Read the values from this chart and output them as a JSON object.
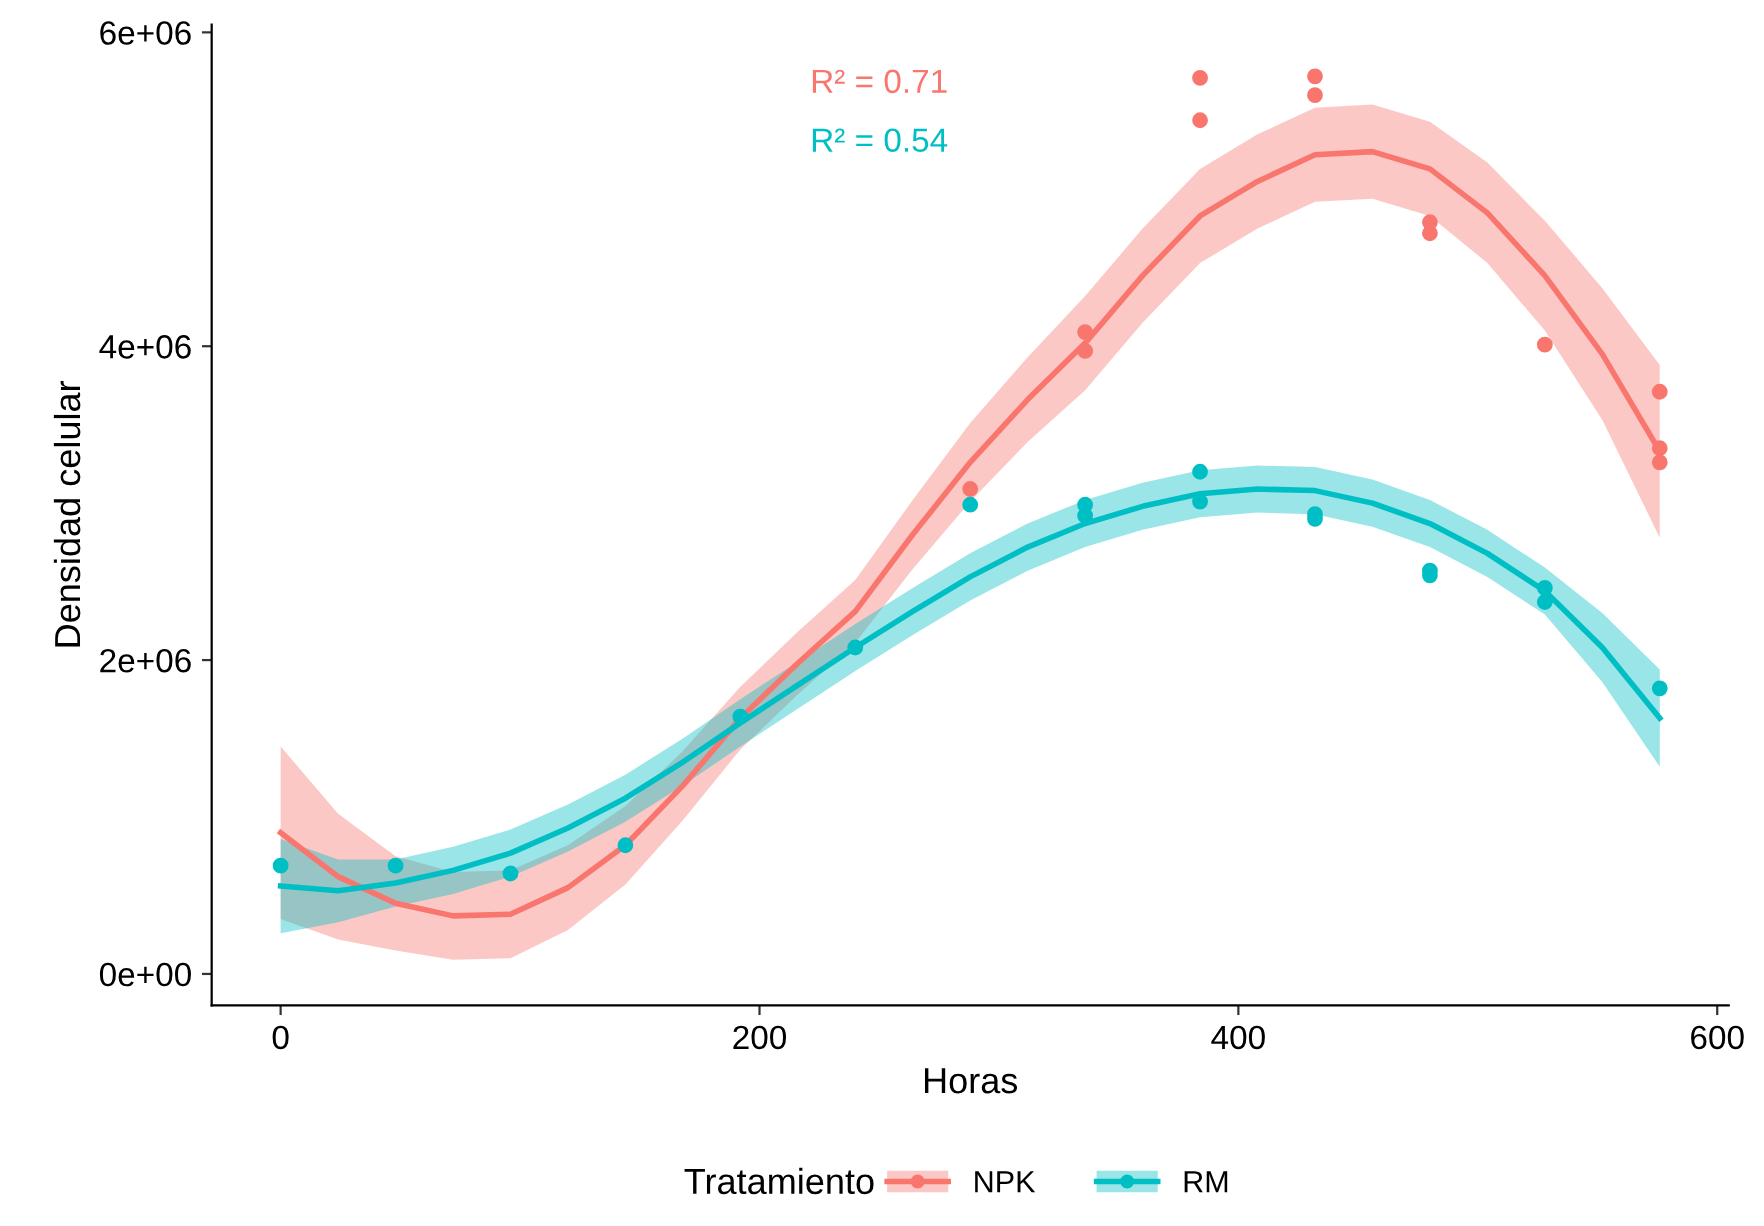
{
  "chart_data": {
    "type": "line",
    "xlabel": "Horas",
    "ylabel": "Densidad celular",
    "legend_title": "Tratamiento",
    "legend": "bottom",
    "grid": false,
    "xlim": [
      -28.8,
      604.8
    ],
    "xticks": [
      0,
      200,
      400,
      600
    ],
    "ylim": [
      -200000,
      6050000
    ],
    "yticks": [
      {
        "value": 0,
        "label": "0e+00"
      },
      {
        "value": 2000000,
        "label": "2e+06"
      },
      {
        "value": 4000000,
        "label": "4e+06"
      },
      {
        "value": 6000000,
        "label": "6e+06"
      }
    ],
    "annotations": [
      "R² = 0.71",
      "R² = 0.54"
    ],
    "series": [
      {
        "name": "NPK",
        "color": "#f8766d",
        "x": [
          0,
          24,
          48,
          72,
          96,
          120,
          144,
          168,
          192,
          216,
          240,
          264,
          288,
          312,
          336,
          360,
          384,
          408,
          432,
          456,
          480,
          504,
          528,
          552,
          576
        ],
        "values": [
          900000,
          620000,
          450000,
          370000,
          380000,
          550000,
          820000,
          1200000,
          1630000,
          1980000,
          2310000,
          2800000,
          3260000,
          3660000,
          4020000,
          4450000,
          4830000,
          5050000,
          5220000,
          5240000,
          5130000,
          4850000,
          4450000,
          3950000,
          3330000
        ],
        "lower": [
          350000,
          220000,
          150000,
          90000,
          100000,
          280000,
          570000,
          980000,
          1430000,
          1780000,
          2110000,
          2580000,
          3010000,
          3390000,
          3720000,
          4150000,
          4530000,
          4750000,
          4920000,
          4940000,
          4830000,
          4530000,
          4100000,
          3530000,
          2780000
        ],
        "upper": [
          1450000,
          1020000,
          750000,
          650000,
          660000,
          820000,
          1070000,
          1420000,
          1830000,
          2180000,
          2510000,
          3020000,
          3510000,
          3930000,
          4320000,
          4750000,
          5130000,
          5350000,
          5520000,
          5540000,
          5430000,
          5170000,
          4800000,
          4370000,
          3880000
        ]
      },
      {
        "name": "RM",
        "color": "#00bfc4",
        "x": [
          0,
          24,
          48,
          72,
          96,
          120,
          144,
          168,
          192,
          216,
          240,
          264,
          288,
          312,
          336,
          360,
          384,
          408,
          432,
          456,
          480,
          504,
          528,
          552,
          576
        ],
        "values": [
          560000,
          530000,
          580000,
          660000,
          770000,
          930000,
          1120000,
          1350000,
          1600000,
          1840000,
          2080000,
          2310000,
          2530000,
          2720000,
          2870000,
          2980000,
          3060000,
          3090000,
          3080000,
          3000000,
          2870000,
          2680000,
          2440000,
          2080000,
          1630000
        ],
        "lower": [
          260000,
          330000,
          430000,
          510000,
          620000,
          780000,
          970000,
          1200000,
          1450000,
          1690000,
          1930000,
          2160000,
          2380000,
          2570000,
          2720000,
          2830000,
          2910000,
          2940000,
          2930000,
          2850000,
          2720000,
          2530000,
          2290000,
          1860000,
          1320000
        ],
        "upper": [
          860000,
          730000,
          730000,
          810000,
          920000,
          1080000,
          1270000,
          1500000,
          1750000,
          1990000,
          2230000,
          2460000,
          2680000,
          2870000,
          3020000,
          3130000,
          3210000,
          3240000,
          3230000,
          3150000,
          3020000,
          2830000,
          2590000,
          2300000,
          1940000
        ]
      },
      {
        "type": "scatter",
        "color": "#f8766d",
        "x": [
          288,
          336,
          336,
          384,
          384,
          432,
          432,
          480,
          480,
          528,
          576,
          576,
          576
        ],
        "values": [
          3090000,
          4090000,
          3970000,
          5710000,
          5440000,
          5720000,
          5600000,
          4790000,
          4720000,
          4010000,
          3710000,
          3350000,
          3260000
        ]
      },
      {
        "type": "scatter",
        "color": "#00bfc4",
        "x": [
          0,
          48,
          96,
          144,
          192,
          240,
          288,
          336,
          336,
          384,
          384,
          432,
          432,
          480,
          480,
          528,
          528,
          576
        ],
        "values": [
          690000,
          690000,
          640000,
          820000,
          1640000,
          2080000,
          2990000,
          2990000,
          2920000,
          3200000,
          3010000,
          2930000,
          2900000,
          2570000,
          2540000,
          2460000,
          2370000,
          1820000
        ]
      }
    ]
  }
}
